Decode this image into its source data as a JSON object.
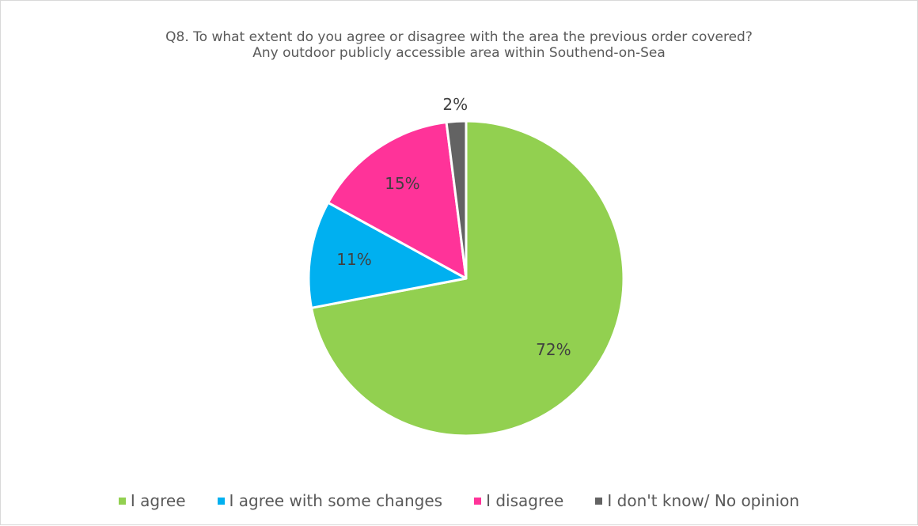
{
  "chart_data": {
    "type": "pie",
    "title": "Q8. To what extent do you agree or disagree with the area the previous order covered?",
    "subtitle": "Any outdoor publicly accessible area within Southend-on-Sea",
    "slices": [
      {
        "label": "I agree",
        "value": 72,
        "display": "72%",
        "color": "#92d050"
      },
      {
        "label": "I agree with some changes",
        "value": 11,
        "display": "11%",
        "color": "#00b0f0"
      },
      {
        "label": "I disagree",
        "value": 15,
        "display": "15%",
        "color": "#ff3399"
      },
      {
        "label": "I don't know/ No opinion",
        "value": 2,
        "display": "2%",
        "color": "#636363"
      }
    ],
    "legend_position": "bottom"
  }
}
